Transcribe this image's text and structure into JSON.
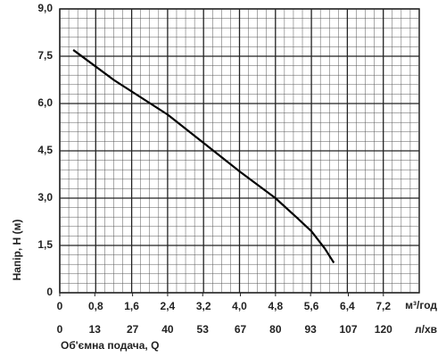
{
  "chart_data": {
    "type": "line",
    "ylabel": "Напір, H (м)",
    "xlabel": "Об'ємна подача, Q",
    "x_unit": "м³/год",
    "x2_unit": "л/хв",
    "x": [
      0.3,
      1.2,
      2.4,
      3.2,
      4.0,
      4.8,
      5.3,
      5.6,
      5.9,
      6.1
    ],
    "series": [
      {
        "name": "H",
        "color": "#000000",
        "values": [
          7.7,
          6.75,
          5.65,
          4.75,
          3.85,
          3.0,
          2.35,
          1.95,
          1.4,
          0.95
        ]
      }
    ],
    "xlim": [
      0,
      8.0
    ],
    "ylim": [
      0,
      9.0
    ],
    "x2lim": [
      0,
      133.3
    ],
    "xticks": [
      0,
      {
        "value": 0.8,
        "label": "0,8"
      },
      {
        "value": 1.6,
        "label": "1,6"
      },
      {
        "value": 2.4,
        "label": "2,4"
      },
      {
        "value": 3.2,
        "label": "3,2"
      },
      {
        "value": 4.0,
        "label": "4,0"
      },
      {
        "value": 4.8,
        "label": "4,8"
      },
      {
        "value": 5.6,
        "label": "5,6"
      },
      {
        "value": 6.4,
        "label": "6,4"
      },
      {
        "value": 7.2,
        "label": "7,2"
      }
    ],
    "x2ticks": [
      0,
      13,
      27,
      40,
      53,
      67,
      80,
      93,
      107,
      120
    ],
    "yticks": [
      0,
      {
        "value": 1.5,
        "label": "1,5"
      },
      {
        "value": 3.0,
        "label": "3,0"
      },
      {
        "value": 4.5,
        "label": "4,5"
      },
      {
        "value": 6.0,
        "label": "6,0"
      },
      {
        "value": 7.5,
        "label": "7,5"
      },
      {
        "value": 9.0,
        "label": "9,0"
      }
    ],
    "grid": true,
    "minor_grid": {
      "x": 4,
      "y": 5
    }
  }
}
